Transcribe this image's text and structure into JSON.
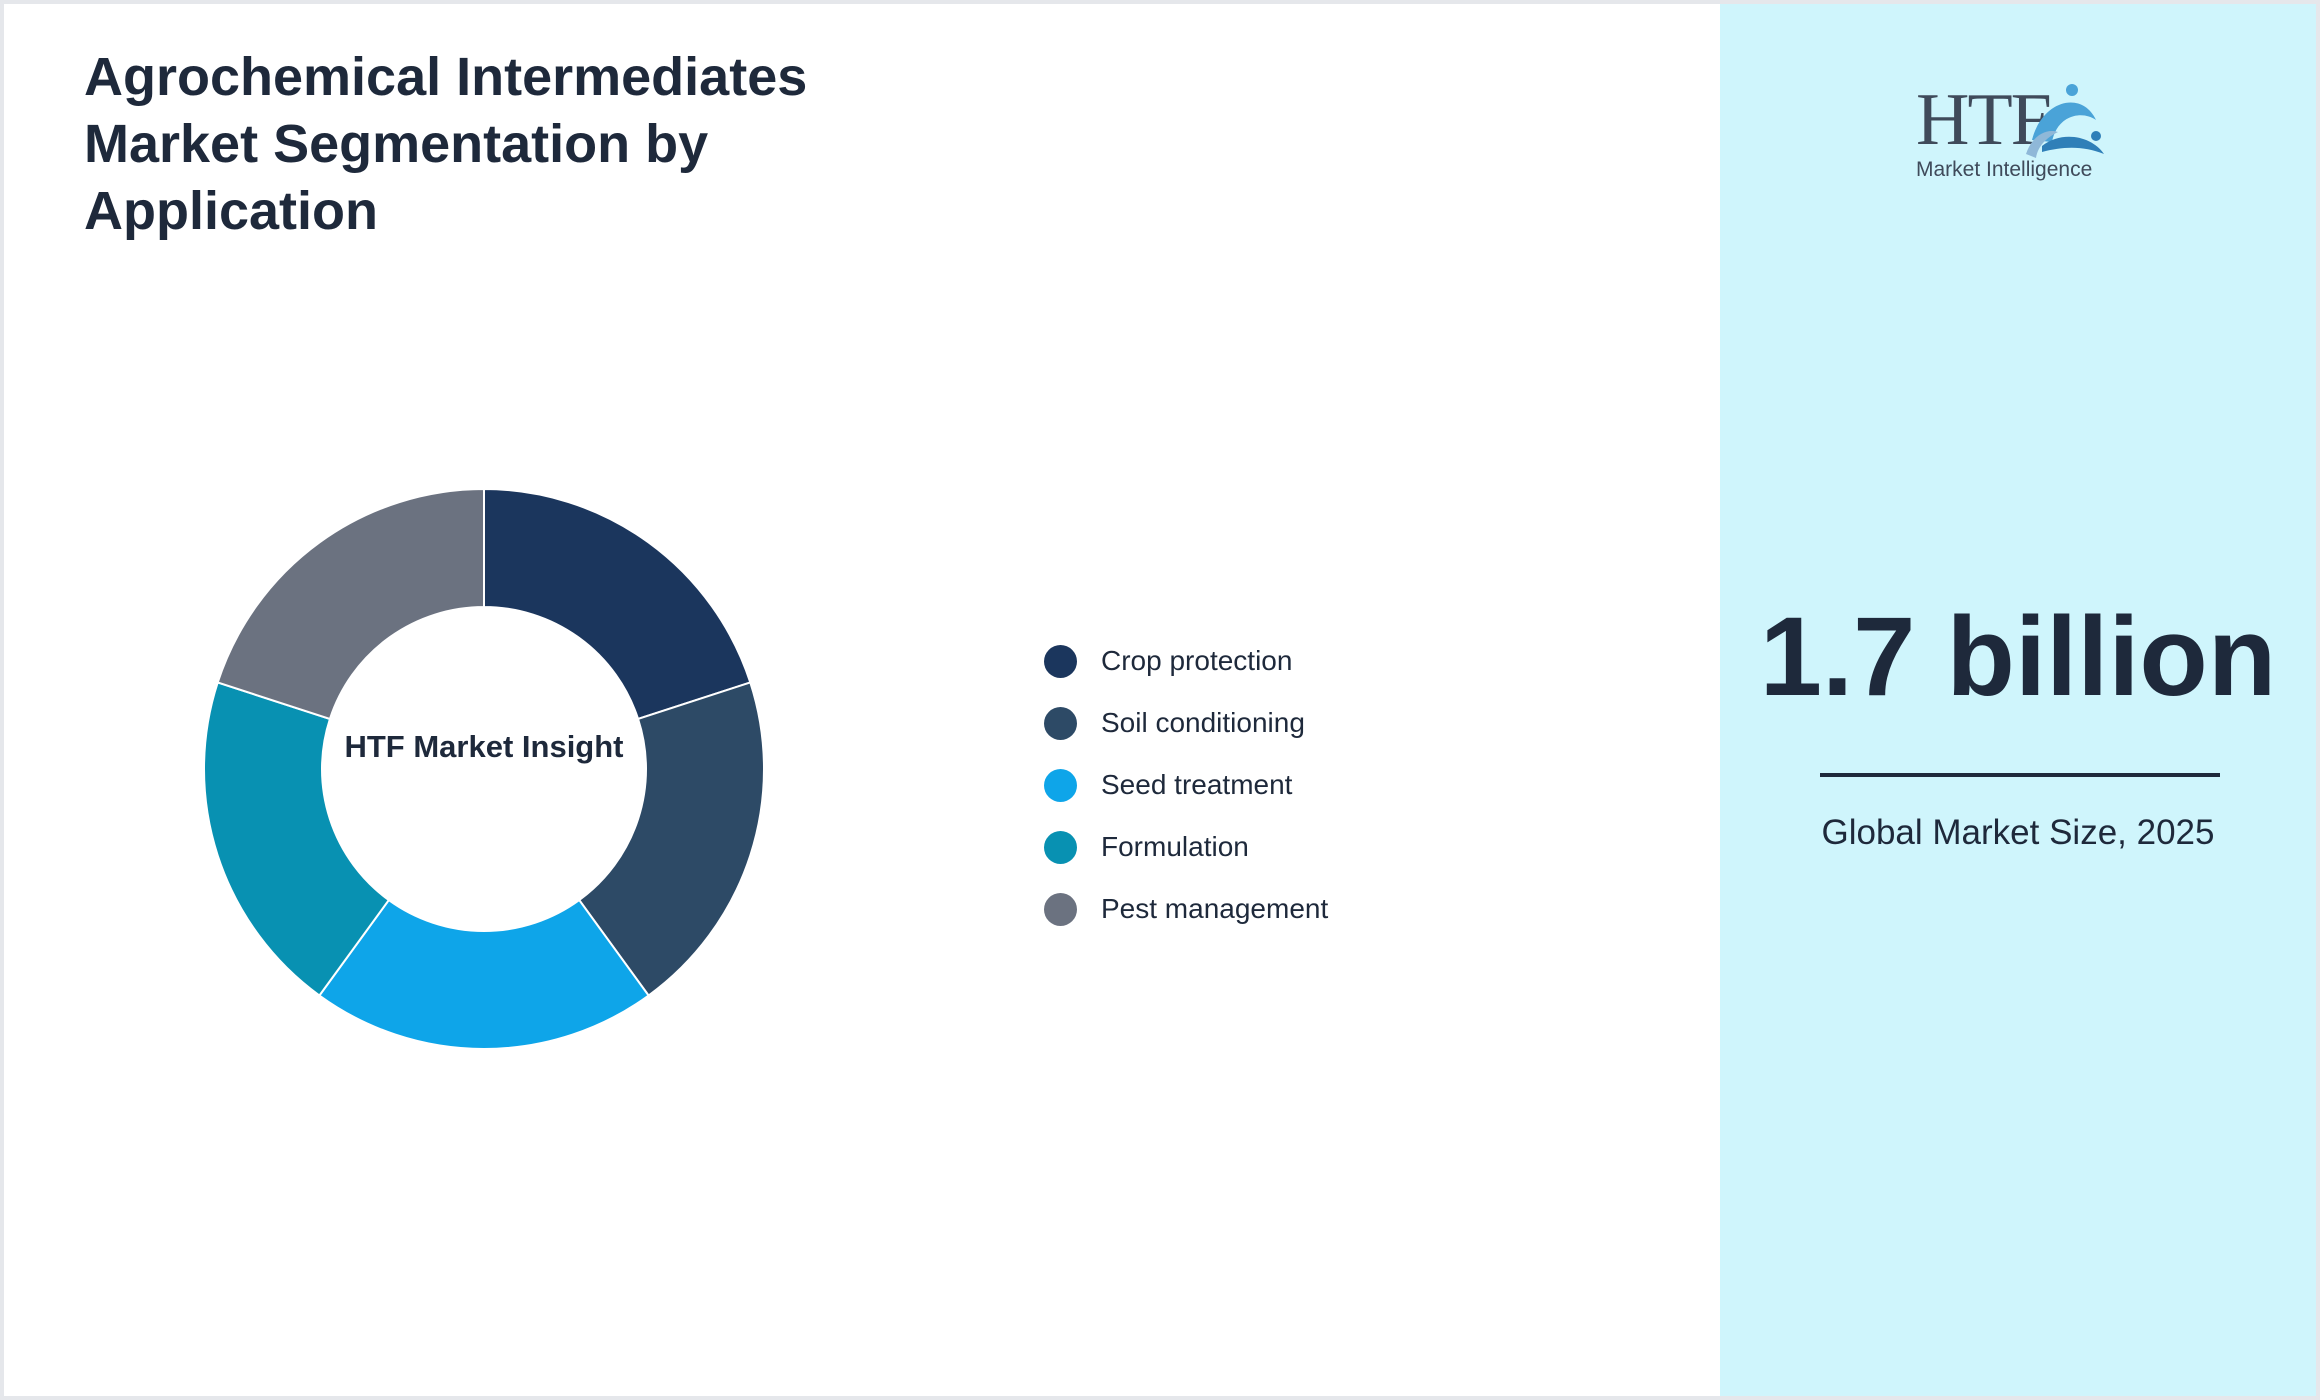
{
  "title": "Agrochemical Intermediates Market Segmentation by Application",
  "donut_center_label": "HTF Market Insight",
  "sidebar": {
    "logo_text": "HTF",
    "logo_subtitle": "Market Intelligence",
    "market_value": "1.7 billion",
    "market_caption": "Global Market Size, 2025"
  },
  "chart_data": {
    "type": "pie",
    "donut": true,
    "categories": [
      "Crop protection",
      "Soil conditioning",
      "Seed treatment",
      "Formulation",
      "Pest management"
    ],
    "values": [
      20,
      20,
      20,
      20,
      20
    ],
    "colors": [
      "#1b365d",
      "#2d4a66",
      "#0ea5e9",
      "#0891b2",
      "#6b7280"
    ],
    "legend_position": "right"
  }
}
